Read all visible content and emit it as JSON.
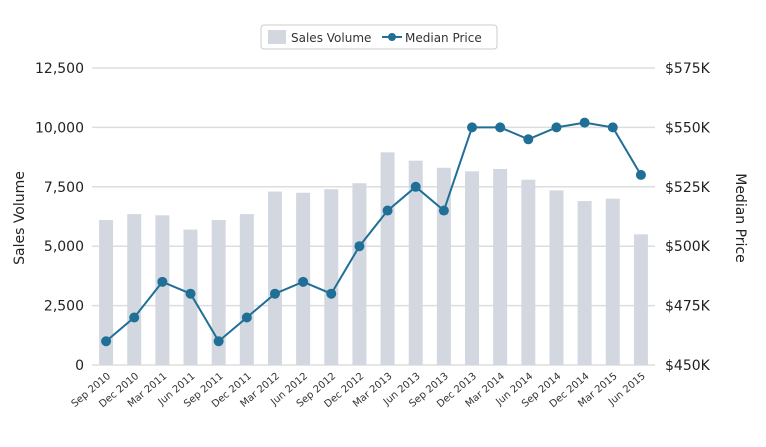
{
  "chart_data": {
    "type": "bar+line",
    "categories": [
      "Sep 2010",
      "Dec 2010",
      "Mar 2011",
      "Jun 2011",
      "Sep 2011",
      "Dec 2011",
      "Mar 2012",
      "Jun 2012",
      "Sep 2012",
      "Dec 2012",
      "Mar 2013",
      "Jun 2013",
      "Sep 2013",
      "Dec 2013",
      "Mar 2014",
      "Jun 2014",
      "Sep 2014",
      "Dec 2014",
      "Mar 2015",
      "Jun 2015"
    ],
    "series": [
      {
        "name": "Sales Volume",
        "type": "bar",
        "axis": "left",
        "color": "#d3d8e0",
        "values": [
          6100,
          6350,
          6300,
          5700,
          6100,
          6350,
          7300,
          7250,
          7400,
          7650,
          8950,
          8600,
          8300,
          8150,
          8250,
          7800,
          7350,
          6900,
          7000,
          5500
        ]
      },
      {
        "name": "Median Price",
        "type": "line",
        "axis": "right",
        "color": "#1f6f96",
        "values": [
          460000,
          470000,
          485000,
          480000,
          460000,
          470000,
          480000,
          485000,
          480000,
          500000,
          515000,
          525000,
          515000,
          550000,
          550000,
          545000,
          550000,
          552000,
          550000,
          530000
        ]
      }
    ],
    "ylabel_left": "Sales Volume",
    "ylabel_right": "Median Price",
    "ylim_left": [
      0,
      12500
    ],
    "ylim_right": [
      450000,
      575000
    ],
    "yticks_left": [
      "0",
      "2,500",
      "5,000",
      "7,500",
      "10,000",
      "12,500"
    ],
    "yticks_right": [
      "$450K",
      "$475K",
      "$500K",
      "$525K",
      "$550K",
      "$575K"
    ],
    "grid": true,
    "legend_placement": "top-center"
  }
}
